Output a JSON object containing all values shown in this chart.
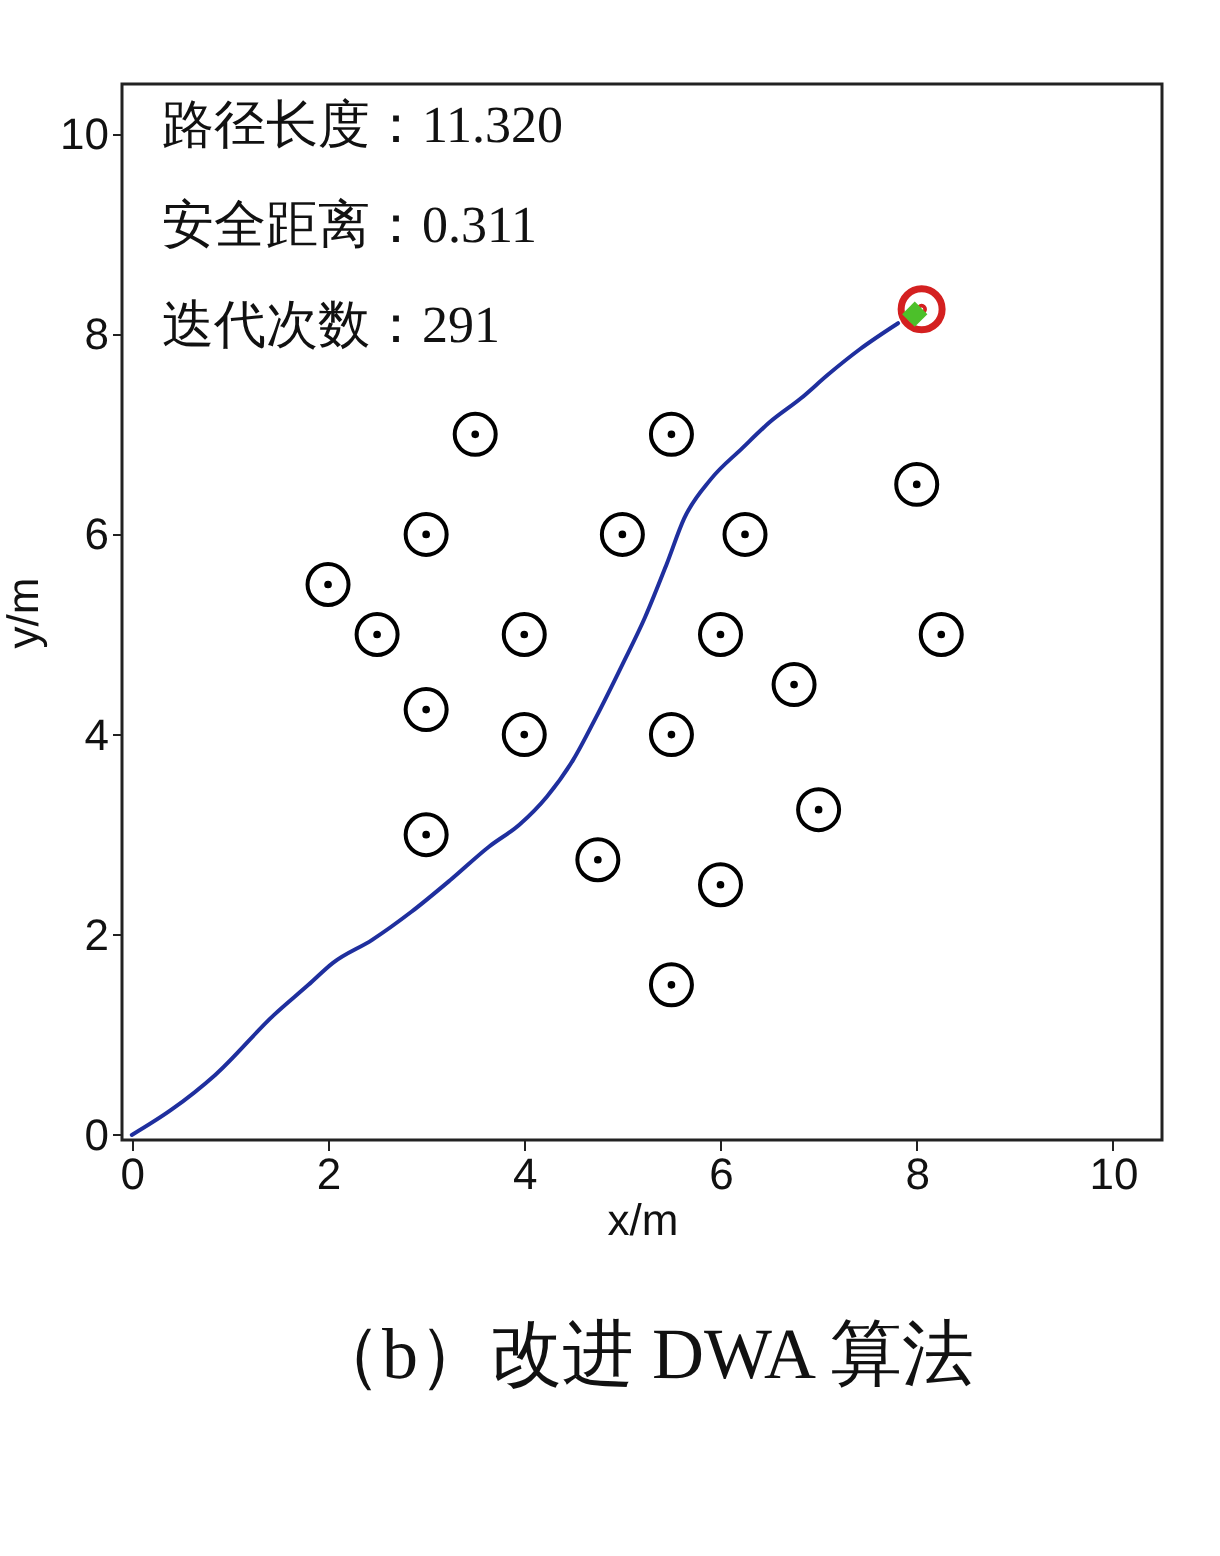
{
  "chart_data": {
    "type": "scatter",
    "title": "（b）改进 DWA 算法",
    "xlabel": "x/m",
    "ylabel": "y/m",
    "xlim": [
      -0.1,
      10.5
    ],
    "ylim": [
      -0.05,
      10.5
    ],
    "xticks": [
      0,
      2,
      4,
      6,
      8,
      10
    ],
    "yticks": [
      0,
      2,
      4,
      6,
      8,
      10
    ],
    "grid": false,
    "annotations": [
      "路径长度：11.320",
      "安全距离：0.311",
      "迭代次数：291"
    ],
    "series": [
      {
        "type": "line",
        "color": "#1f2f9e",
        "line_style": "solid",
        "marker": "none",
        "x": [
          0,
          0.4,
          0.85,
          1.45,
          1.8,
          2.05,
          2.45,
          2.85,
          3.25,
          3.64,
          3.95,
          4.23,
          4.5,
          4.73,
          5.0,
          5.23,
          5.45,
          5.63,
          5.9,
          6.22,
          6.5,
          6.82,
          7.1,
          7.42,
          7.81
        ],
        "values": [
          0,
          0.25,
          0.6,
          1.2,
          1.5,
          1.72,
          1.95,
          2.23,
          2.55,
          2.88,
          3.1,
          3.38,
          3.75,
          4.17,
          4.7,
          5.17,
          5.7,
          6.16,
          6.55,
          6.86,
          7.12,
          7.36,
          7.6,
          7.85,
          8.11
        ]
      },
      {
        "color": "#000000",
        "marker": "circle",
        "x": [
          3.5,
          5.5,
          8,
          2,
          3,
          5,
          6.25,
          2.5,
          4,
          6,
          8.25,
          3,
          6.75,
          4,
          5.5,
          3,
          4.75,
          7,
          6,
          5.5
        ],
        "values": [
          7,
          7,
          6.5,
          5.5,
          6,
          6,
          6,
          5,
          5,
          5,
          5,
          4.25,
          4.5,
          4,
          4,
          3,
          2.75,
          3.25,
          2.5,
          1.5
        ]
      },
      {
        "type": "scatter",
        "color": "#d42020",
        "marker": "circle",
        "x": [
          8.05
        ],
        "values": [
          8.25
        ]
      },
      {
        "type": "scatter",
        "color": "#4cc02a",
        "marker": "diamond",
        "x": [
          7.98
        ],
        "values": [
          8.2
        ]
      }
    ]
  }
}
